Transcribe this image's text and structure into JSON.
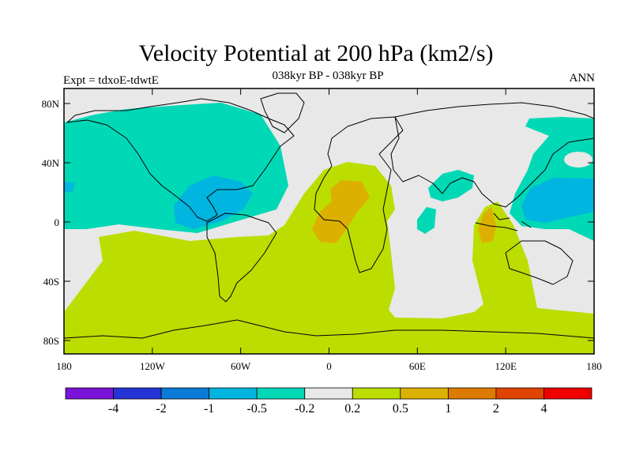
{
  "title": "Velocity Potential at 200 hPa (km2/s)",
  "subtitle": "038kyr BP - 038kyr BP",
  "left_label": "Expt = tdxoE-tdwtE",
  "right_label": "ANN",
  "y_ticks": [
    "80N",
    "40N",
    "0",
    "40S",
    "80S"
  ],
  "x_ticks": [
    "180",
    "120W",
    "60W",
    "0",
    "60E",
    "120E",
    "180"
  ],
  "colorbar": {
    "colors": [
      "#7a14d8",
      "#2433d4",
      "#0a7ad6",
      "#00b5e0",
      "#00d8b6",
      "#e8e8e8",
      "#bcdd00",
      "#dcb000",
      "#dd7a00",
      "#e04400",
      "#ee0000"
    ],
    "labels": [
      "-4",
      "-2",
      "-1",
      "-0.5",
      "-0.2",
      "0.2",
      "0.5",
      "1",
      "2",
      "4"
    ]
  },
  "fill_colors": {
    "background": "#e8e8e8",
    "neg_weak": "#00d8b6",
    "neg_mid": "#00b5e0",
    "pos_weak": "#bcdd00",
    "pos_mid": "#dcb000"
  }
}
